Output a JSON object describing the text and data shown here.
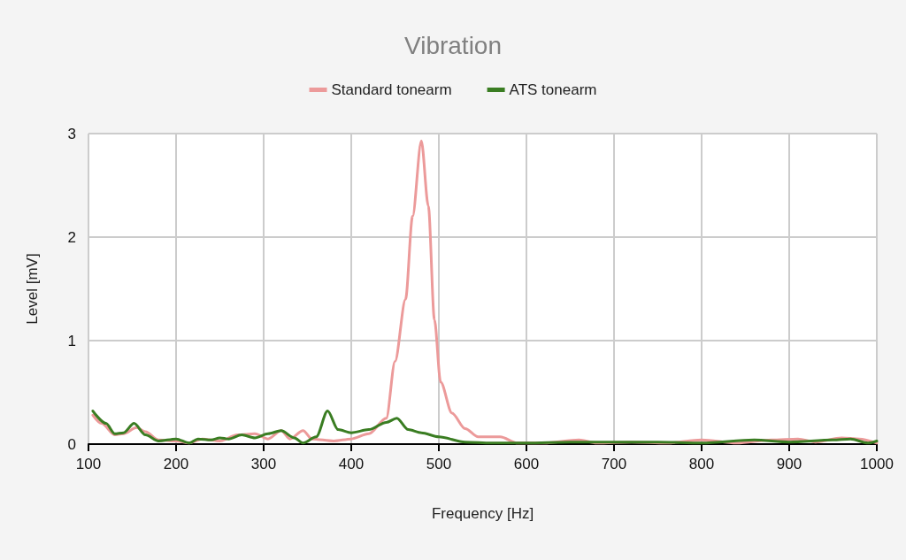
{
  "chart_data": {
    "type": "line",
    "title": "Vibration",
    "xlabel": "Frequency [Hz]",
    "ylabel": "Level [mV]",
    "xlim": [
      100,
      1000
    ],
    "xticks": [
      100,
      200,
      300,
      400,
      500,
      600,
      700,
      800,
      900,
      1000
    ],
    "ylim": [
      0,
      3
    ],
    "yticks": [
      0,
      1,
      2,
      3
    ],
    "grid": true,
    "legend": "top",
    "marker": "none",
    "line_style": "solid",
    "series": [
      {
        "name": "Standard tonearm",
        "color": "#ec9a9a",
        "x": [
          105,
          115,
          130,
          140,
          155,
          165,
          180,
          200,
          215,
          230,
          250,
          270,
          290,
          305,
          320,
          330,
          345,
          355,
          380,
          400,
          420,
          440,
          450,
          462,
          470,
          480,
          488,
          495,
          502,
          515,
          530,
          545,
          570,
          590,
          620,
          660,
          680,
          720,
          760,
          800,
          840,
          880,
          910,
          930,
          960,
          980,
          1000
        ],
        "values": [
          0.28,
          0.2,
          0.09,
          0.1,
          0.16,
          0.12,
          0.04,
          0.03,
          0.01,
          0.05,
          0.03,
          0.09,
          0.1,
          0.05,
          0.13,
          0.05,
          0.13,
          0.05,
          0.03,
          0.05,
          0.1,
          0.25,
          0.8,
          1.4,
          2.2,
          2.93,
          2.3,
          1.2,
          0.6,
          0.3,
          0.15,
          0.07,
          0.07,
          0.01,
          0.01,
          0.04,
          0.01,
          0.02,
          0.01,
          0.04,
          0.01,
          0.04,
          0.05,
          0.02,
          0.06,
          0.05,
          0.01
        ]
      },
      {
        "name": "ATS tonearm",
        "color": "#3a7d22",
        "x": [
          105,
          120,
          130,
          140,
          152,
          165,
          180,
          200,
          215,
          225,
          240,
          250,
          260,
          275,
          290,
          305,
          320,
          335,
          345,
          360,
          373,
          385,
          400,
          420,
          440,
          452,
          465,
          480,
          500,
          530,
          560,
          600,
          650,
          700,
          750,
          800,
          860,
          900,
          950,
          970,
          990,
          1000
        ],
        "values": [
          0.32,
          0.2,
          0.1,
          0.11,
          0.2,
          0.09,
          0.03,
          0.05,
          0.01,
          0.05,
          0.04,
          0.06,
          0.05,
          0.09,
          0.06,
          0.1,
          0.13,
          0.06,
          0.01,
          0.07,
          0.32,
          0.14,
          0.11,
          0.14,
          0.21,
          0.25,
          0.14,
          0.11,
          0.07,
          0.02,
          0.01,
          0.01,
          0.02,
          0.02,
          0.02,
          0.01,
          0.04,
          0.02,
          0.04,
          0.05,
          0.01,
          0.03
        ]
      }
    ]
  }
}
